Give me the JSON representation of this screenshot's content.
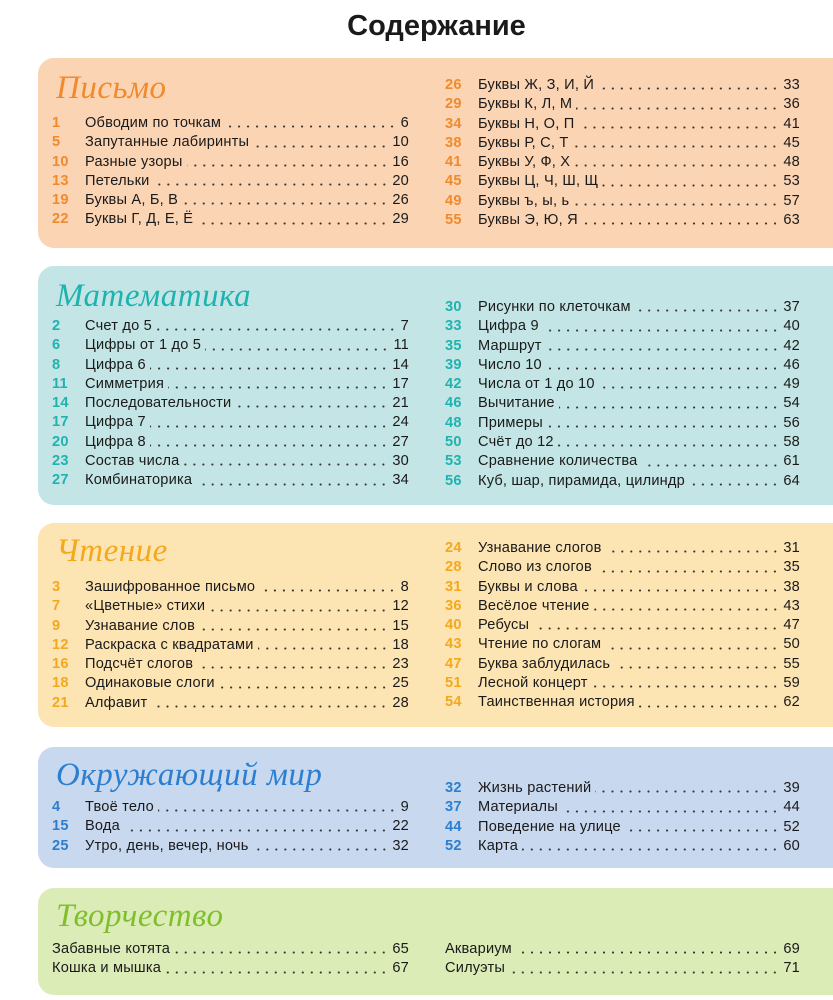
{
  "header": {
    "title": "Содержание"
  },
  "sections": [
    {
      "title": "Письмо",
      "left": [
        {
          "num": 1,
          "title": "Обводим по точкам",
          "page": 6
        },
        {
          "num": 5,
          "title": "Запутанные лабиринты",
          "page": 10
        },
        {
          "num": 10,
          "title": "Разные узоры",
          "page": 16
        },
        {
          "num": 13,
          "title": "Петельки",
          "page": 20
        },
        {
          "num": 19,
          "title": "Буквы А, Б, В",
          "page": 26
        },
        {
          "num": 22,
          "title": "Буквы Г, Д, Е, Ё",
          "page": 29
        }
      ],
      "right": [
        {
          "num": 26,
          "title": "Буквы Ж, З, И, Й",
          "page": 33
        },
        {
          "num": 29,
          "title": "Буквы К, Л, М",
          "page": 36
        },
        {
          "num": 34,
          "title": "Буквы Н, О, П",
          "page": 41
        },
        {
          "num": 38,
          "title": "Буквы Р, С, Т",
          "page": 45
        },
        {
          "num": 41,
          "title": "Буквы У, Ф, Х",
          "page": 48
        },
        {
          "num": 45,
          "title": "Буквы Ц, Ч, Ш, Щ",
          "page": 53
        },
        {
          "num": 49,
          "title": "Буквы ъ, ы, ь",
          "page": 57
        },
        {
          "num": 55,
          "title": "Буквы Э, Ю, Я",
          "page": 63
        }
      ]
    },
    {
      "title": "Математика",
      "left": [
        {
          "num": 2,
          "title": "Счет до 5",
          "page": 7
        },
        {
          "num": 6,
          "title": "Цифры от 1 до 5",
          "page": 11
        },
        {
          "num": 8,
          "title": "Цифра 6",
          "page": 14
        },
        {
          "num": 11,
          "title": "Симметрия",
          "page": 17
        },
        {
          "num": 14,
          "title": "Последовательности",
          "page": 21
        },
        {
          "num": 17,
          "title": "Цифра 7",
          "page": 24
        },
        {
          "num": 20,
          "title": "Цифра 8",
          "page": 27
        },
        {
          "num": 23,
          "title": "Состав числа",
          "page": 30
        },
        {
          "num": 27,
          "title": "Комбинаторика",
          "page": 34
        }
      ],
      "right": [
        {
          "num": 30,
          "title": "Рисунки по клеточкам",
          "page": 37
        },
        {
          "num": 33,
          "title": "Цифра 9",
          "page": 40
        },
        {
          "num": 35,
          "title": "Маршрут",
          "page": 42
        },
        {
          "num": 39,
          "title": "Число 10",
          "page": 46
        },
        {
          "num": 42,
          "title": "Числа от 1 до 10",
          "page": 49
        },
        {
          "num": 46,
          "title": "Вычитание",
          "page": 54
        },
        {
          "num": 48,
          "title": "Примеры",
          "page": 56
        },
        {
          "num": 50,
          "title": "Счёт до 12",
          "page": 58
        },
        {
          "num": 53,
          "title": "Сравнение количества",
          "page": 61
        },
        {
          "num": 56,
          "title": "Куб, шар, пирамида, цилиндр",
          "page": 64
        }
      ]
    },
    {
      "title": "Чтение",
      "left": [
        {
          "num": 3,
          "title": "Зашифрованное письмо",
          "page": 8
        },
        {
          "num": 7,
          "title": "«Цветные» стихи",
          "page": 12
        },
        {
          "num": 9,
          "title": "Узнавание слов",
          "page": 15
        },
        {
          "num": 12,
          "title": "Раскраска с квадратами",
          "page": 18
        },
        {
          "num": 16,
          "title": "Подсчёт слогов",
          "page": 23
        },
        {
          "num": 18,
          "title": "Одинаковые слоги",
          "page": 25
        },
        {
          "num": 21,
          "title": "Алфавит",
          "page": 28
        }
      ],
      "right": [
        {
          "num": 24,
          "title": "Узнавание слогов",
          "page": 31
        },
        {
          "num": 28,
          "title": "Слово из слогов",
          "page": 35
        },
        {
          "num": 31,
          "title": "Буквы и слова",
          "page": 38
        },
        {
          "num": 36,
          "title": "Весёлое чтение",
          "page": 43
        },
        {
          "num": 40,
          "title": "Ребусы",
          "page": 47
        },
        {
          "num": 43,
          "title": "Чтение по слогам",
          "page": 50
        },
        {
          "num": 47,
          "title": "Буква заблудилась",
          "page": 55
        },
        {
          "num": 51,
          "title": "Лесной концерт",
          "page": 59
        },
        {
          "num": 54,
          "title": "Таинственная история",
          "page": 62
        }
      ]
    },
    {
      "title": "Окружающий мир",
      "left": [
        {
          "num": 4,
          "title": "Твоё тело",
          "page": 9
        },
        {
          "num": 15,
          "title": "Вода",
          "page": 22
        },
        {
          "num": 25,
          "title": "Утро, день, вечер, ночь",
          "page": 32
        }
      ],
      "right": [
        {
          "num": 32,
          "title": "Жизнь растений",
          "page": 39
        },
        {
          "num": 37,
          "title": "Материалы",
          "page": 44
        },
        {
          "num": 44,
          "title": "Поведение на улице",
          "page": 52
        },
        {
          "num": 52,
          "title": "Карта",
          "page": 60
        }
      ]
    },
    {
      "title": "Творчество",
      "left": [
        {
          "title": "Забавные котята",
          "page": 65
        },
        {
          "title": "Кошка и мышка",
          "page": 67
        }
      ],
      "right": [
        {
          "title": "Аквариум",
          "page": 69
        },
        {
          "title": "Силуэты",
          "page": 71
        }
      ]
    }
  ]
}
